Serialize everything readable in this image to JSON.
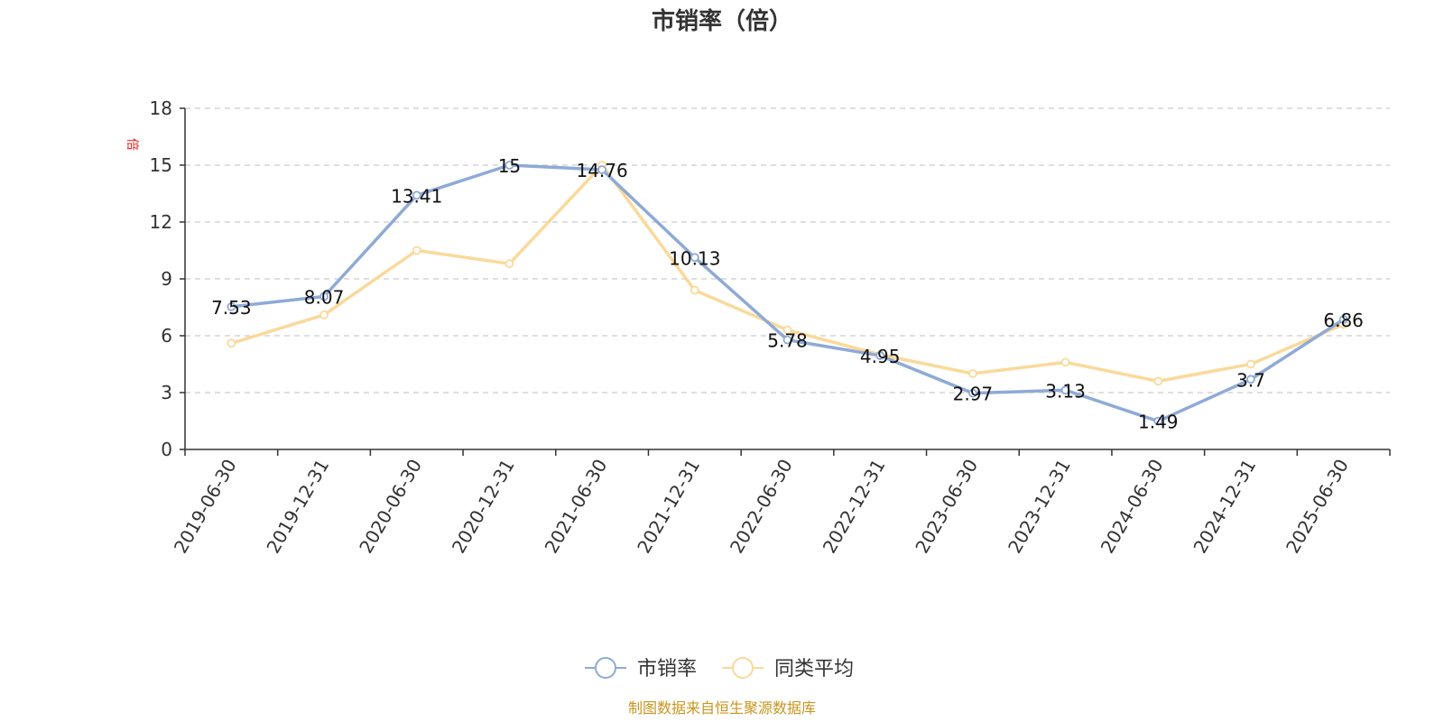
{
  "chart_data": {
    "type": "line",
    "title": "市销率（倍）",
    "y_unit": "倍",
    "ylim": [
      0,
      18
    ],
    "yticks": [
      0,
      3,
      6,
      9,
      12,
      15,
      18
    ],
    "categories": [
      "2019-06-30",
      "2019-12-31",
      "2020-06-30",
      "2020-12-31",
      "2021-06-30",
      "2021-12-31",
      "2022-06-30",
      "2022-12-31",
      "2023-06-30",
      "2023-12-31",
      "2024-06-30",
      "2024-12-31",
      "2025-06-30"
    ],
    "series": [
      {
        "name": "市销率",
        "color": "#8eaad6",
        "values": [
          7.53,
          8.07,
          13.41,
          15,
          14.76,
          10.13,
          5.78,
          4.95,
          2.97,
          3.13,
          1.49,
          3.7,
          6.86
        ],
        "labels": [
          "7.53",
          "8.07",
          "13.41",
          "15",
          "14.76",
          "10.13",
          "5.78",
          "4.95",
          "2.97",
          "3.13",
          "1.49",
          "3.7",
          "6.86"
        ]
      },
      {
        "name": "同类平均",
        "color": "#fad99a",
        "values": [
          5.6,
          7.1,
          10.5,
          9.8,
          15.0,
          8.4,
          6.3,
          5.0,
          4.0,
          4.6,
          3.6,
          4.5,
          6.6
        ]
      }
    ],
    "grid": true,
    "legend_position": "bottom-center"
  },
  "source_text": "制图数据来自恒生聚源数据库"
}
